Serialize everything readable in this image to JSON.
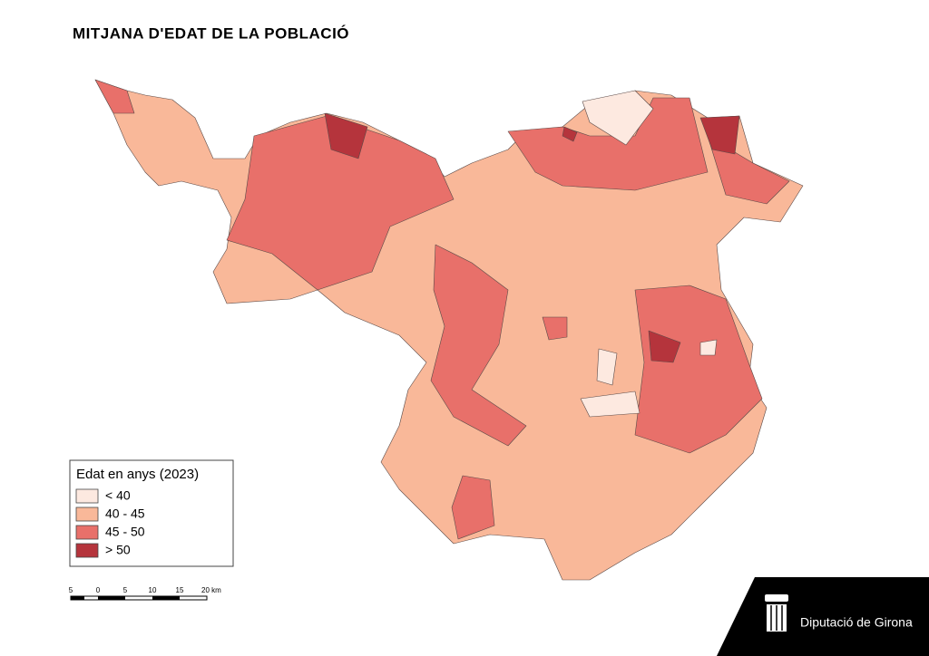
{
  "title": "MITJANA D'EDAT DE LA POBLACIÓ",
  "legend": {
    "title": "Edat en anys (2023)",
    "items": [
      {
        "label": "< 40",
        "color": "#fde9e0"
      },
      {
        "label": "40 - 45",
        "color": "#f9b899"
      },
      {
        "label": "45 - 50",
        "color": "#e8706a"
      },
      {
        "label": "> 50",
        "color": "#b5343c"
      }
    ]
  },
  "scale_bar": {
    "labels": [
      "5",
      "0",
      "5",
      "10",
      "15",
      "20 km"
    ]
  },
  "logo": {
    "text": "Diputació de Girona"
  }
}
